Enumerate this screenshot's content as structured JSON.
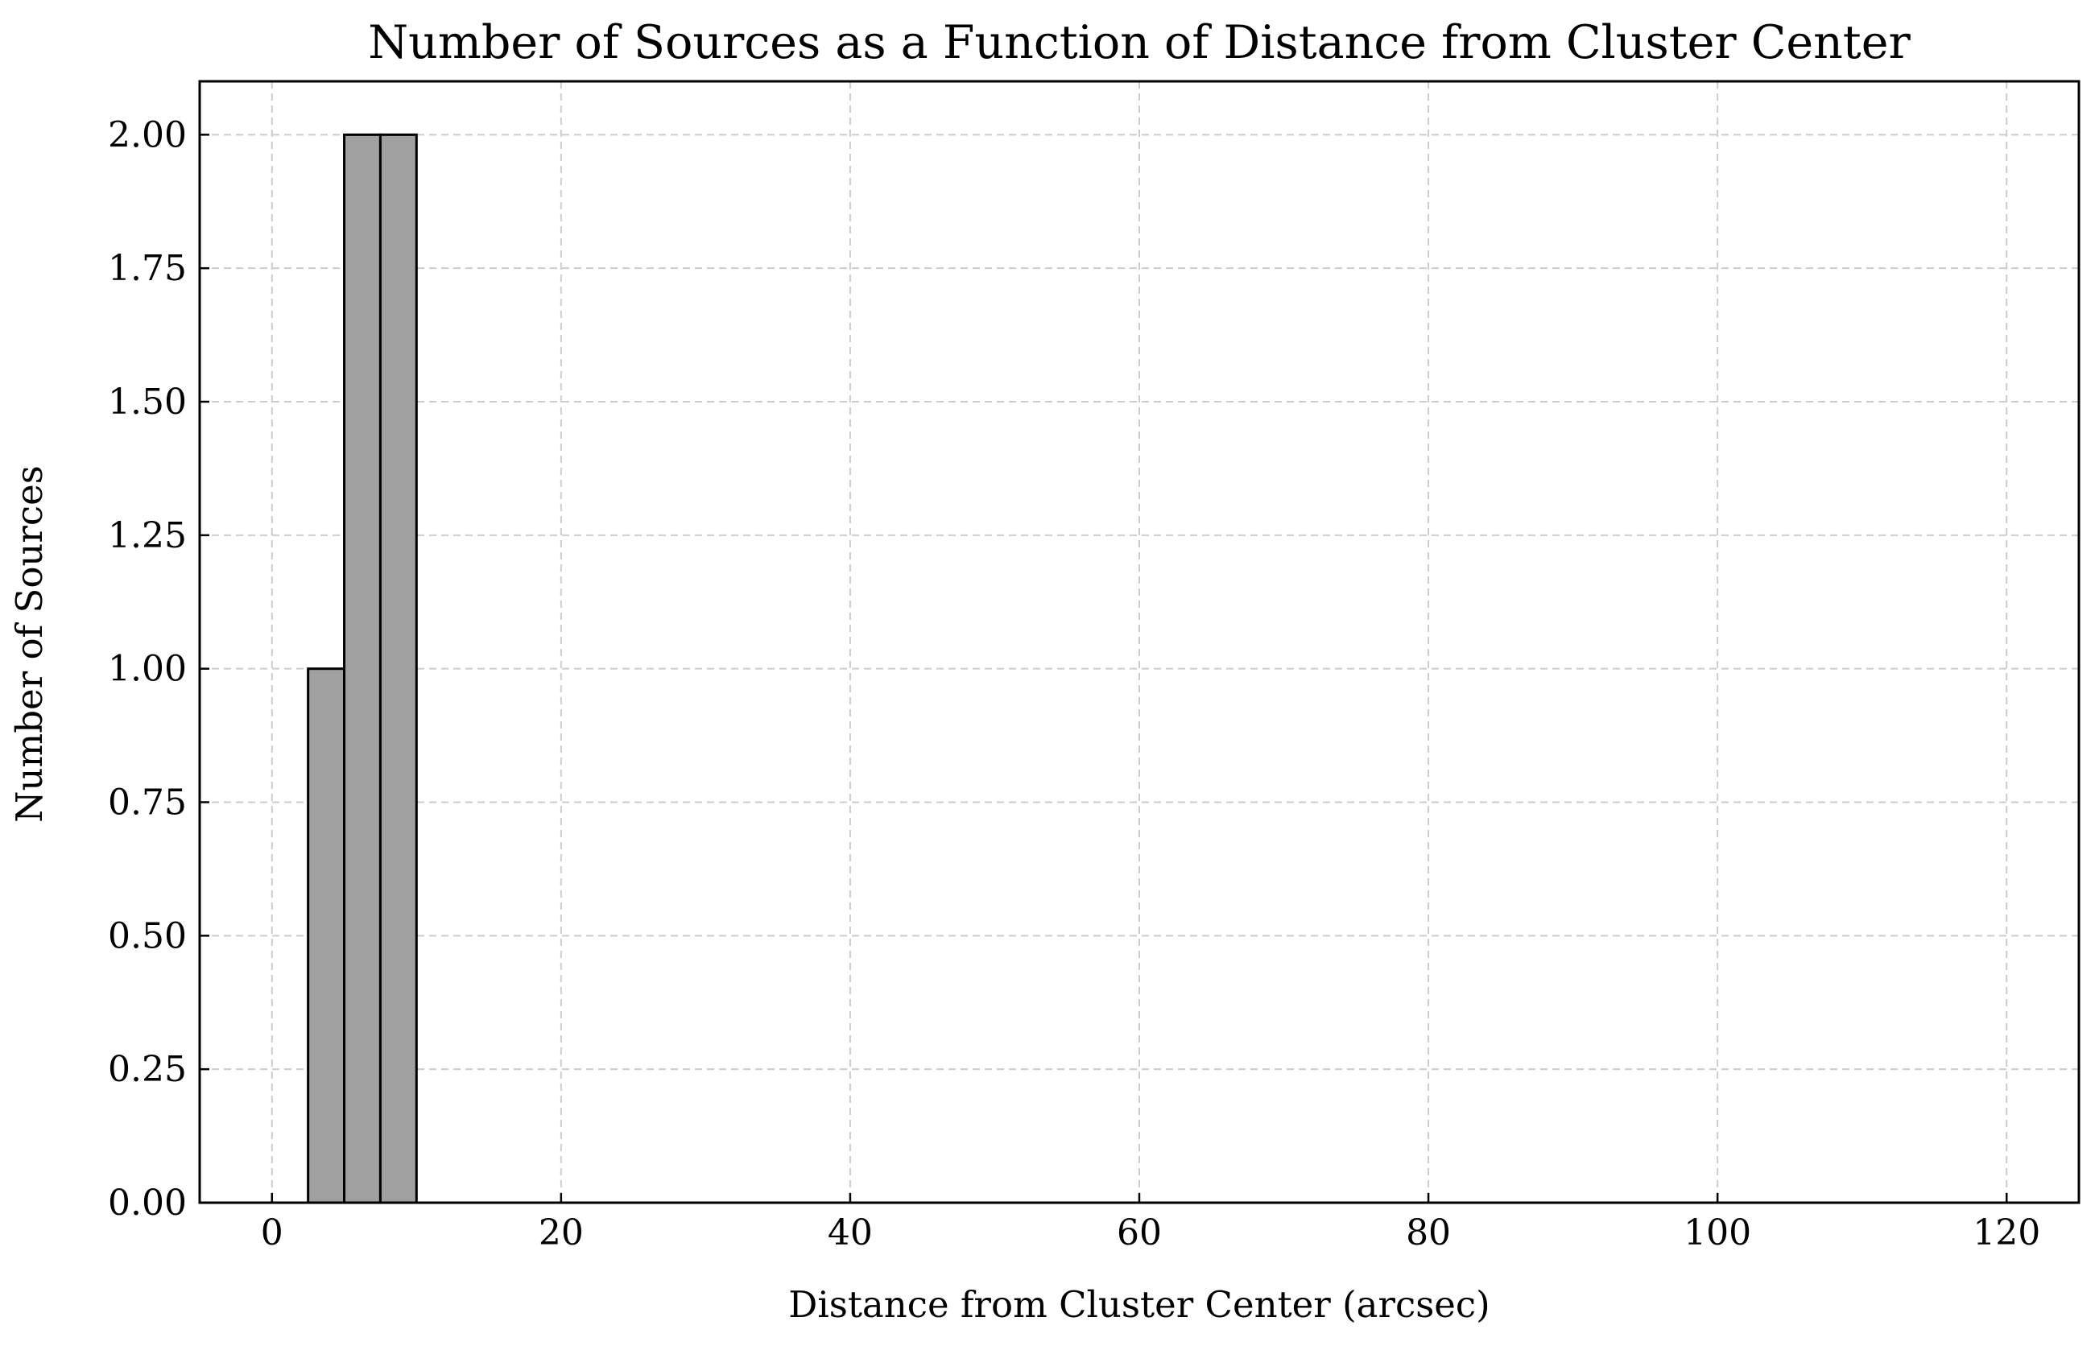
{
  "chart_data": {
    "type": "bar",
    "title": "Number of Sources as a Function of Distance from Cluster Center",
    "xlabel": "Distance from Cluster Center (arcsec)",
    "ylabel": "Number of Sources",
    "xlim": [
      -5,
      125
    ],
    "ylim": [
      0,
      2.1
    ],
    "xticks": [
      0,
      20,
      40,
      60,
      80,
      100,
      120
    ],
    "yticks": [
      0.0,
      0.25,
      0.5,
      0.75,
      1.0,
      1.25,
      1.5,
      1.75,
      2.0
    ],
    "xtick_labels": [
      "0",
      "20",
      "40",
      "60",
      "80",
      "100",
      "120"
    ],
    "ytick_labels": [
      "0.00",
      "0.25",
      "0.50",
      "0.75",
      "1.00",
      "1.25",
      "1.50",
      "1.75",
      "2.00"
    ],
    "bins": [
      {
        "x0": 2.5,
        "x1": 5.0,
        "count": 1
      },
      {
        "x0": 5.0,
        "x1": 7.5,
        "count": 2
      },
      {
        "x0": 7.5,
        "x1": 10.0,
        "count": 2
      }
    ],
    "grid": true,
    "bar_color": "#a0a0a0",
    "edge_color": "#000000"
  }
}
